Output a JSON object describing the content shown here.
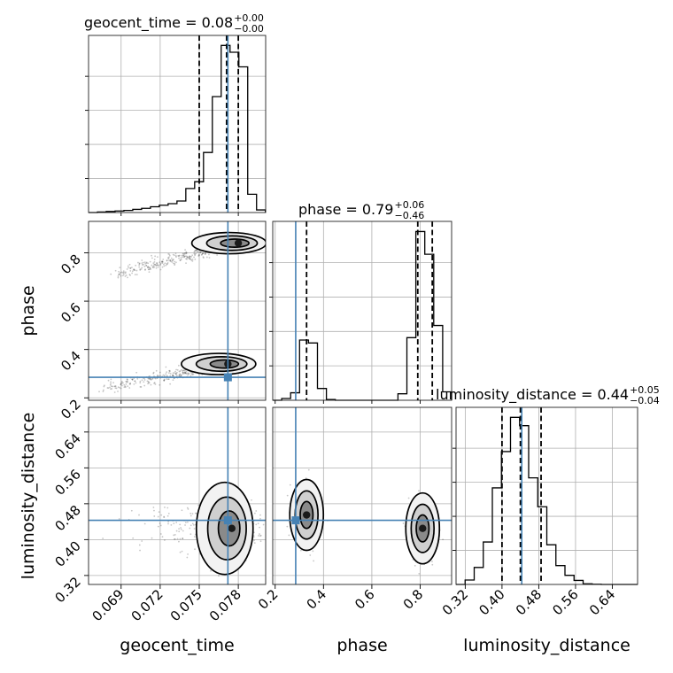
{
  "chart_data": {
    "type": "corner",
    "parameters": [
      "geocent_time",
      "phase",
      "luminosity_distance"
    ],
    "truth_color": "#4682b4",
    "grid": true,
    "ranges": {
      "geocent_time": [
        0.0665,
        0.0801
      ],
      "phase": [
        0.19,
        0.93
      ],
      "luminosity_distance": [
        0.3,
        0.695
      ]
    },
    "ticks": {
      "geocent_time": [
        "0.069",
        "0.072",
        "0.075",
        "0.078"
      ],
      "phase": [
        "0.2",
        "0.4",
        "0.6",
        "0.8"
      ],
      "phase_row": [
        "0.2",
        "0.4",
        "0.6",
        "0.8"
      ],
      "luminosity_distance": [
        "0.32",
        "0.40",
        "0.48",
        "0.56",
        "0.64"
      ]
    },
    "titles": [
      {
        "param": "geocent_time",
        "main": "geocent_time = 0.08",
        "upper": "+0.00",
        "lower": "−0.00"
      },
      {
        "param": "phase",
        "main": "phase = 0.79",
        "upper": "+0.06",
        "lower": "−0.46"
      },
      {
        "param": "luminosity_distance",
        "main": "luminosity_distance = 0.44",
        "upper": "+0.05",
        "lower": "−0.04"
      }
    ],
    "truths": {
      "geocent_time": 0.0772,
      "phase": 0.285,
      "luminosity_distance": 0.443
    },
    "quantile_lines": {
      "geocent_time": [
        0.075,
        0.0771,
        0.078
      ],
      "phase": [
        0.33,
        0.79,
        0.85
      ],
      "luminosity_distance": [
        0.4,
        0.44,
        0.485
      ]
    },
    "histograms": {
      "geocent_time": {
        "edges": [
          0.0665,
          0.067179,
          0.067858,
          0.068537,
          0.069216,
          0.069895,
          0.070574,
          0.071253,
          0.071932,
          0.072611,
          0.07329,
          0.073969,
          0.074648,
          0.075327,
          0.076006,
          0.076685,
          0.077364,
          0.078043,
          0.078722,
          0.079401,
          0.08008
        ],
        "counts": [
          0,
          1,
          2,
          3,
          4,
          6,
          8,
          11,
          14,
          17,
          22,
          46,
          59,
          115,
          222,
          320,
          307,
          279,
          35,
          5
        ]
      },
      "phase": {
        "edges": [
          0.19,
          0.227,
          0.264,
          0.301,
          0.338,
          0.375,
          0.412,
          0.449,
          0.486,
          0.523,
          0.56,
          0.597,
          0.634,
          0.671,
          0.708,
          0.745,
          0.782,
          0.819,
          0.856,
          0.893,
          0.93
        ],
        "counts": [
          0,
          9,
          38,
          307,
          292,
          60,
          4,
          0,
          0,
          0,
          0,
          0,
          0,
          0,
          33,
          319,
          860,
          744,
          381,
          43
        ]
      },
      "luminosity_distance": {
        "edges": [
          0.3,
          0.31975,
          0.3395,
          0.35925,
          0.379,
          0.39875,
          0.4185,
          0.43825,
          0.458,
          0.47775,
          0.4975,
          0.51725,
          0.537,
          0.55675,
          0.5765,
          0.59625,
          0.616,
          0.63575,
          0.6555,
          0.67525,
          0.695
        ],
        "counts": [
          0,
          21,
          80,
          200,
          455,
          626,
          787,
          748,
          502,
          366,
          187,
          89,
          43,
          19,
          3,
          1,
          0,
          0,
          0,
          0
        ]
      }
    },
    "density_modes": [
      {
        "pair": [
          "geocent_time",
          "phase"
        ],
        "x": 0.078,
        "y": 0.84
      },
      {
        "pair": [
          "geocent_time",
          "phase"
        ],
        "x": 0.0772,
        "y": 0.34
      },
      {
        "pair": [
          "geocent_time",
          "luminosity_distance"
        ],
        "x": 0.0775,
        "y": 0.425
      },
      {
        "pair": [
          "phase",
          "luminosity_distance"
        ],
        "x": 0.33,
        "y": 0.455
      },
      {
        "pair": [
          "phase",
          "luminosity_distance"
        ],
        "x": 0.81,
        "y": 0.425
      }
    ]
  }
}
